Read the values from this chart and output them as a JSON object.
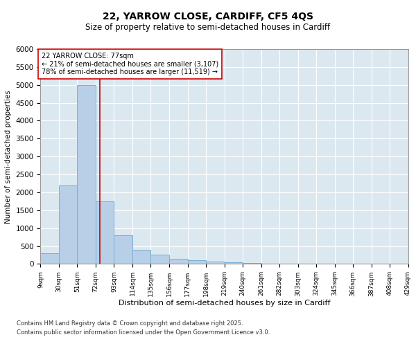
{
  "title": "22, YARROW CLOSE, CARDIFF, CF5 4QS",
  "subtitle": "Size of property relative to semi-detached houses in Cardiff",
  "xlabel": "Distribution of semi-detached houses by size in Cardiff",
  "ylabel": "Number of semi-detached properties",
  "footnote1": "Contains HM Land Registry data © Crown copyright and database right 2025.",
  "footnote2": "Contains public sector information licensed under the Open Government Licence v3.0.",
  "annotation_title": "22 YARROW CLOSE: 77sqm",
  "annotation_line1": "← 21% of semi-detached houses are smaller (3,107)",
  "annotation_line2": "78% of semi-detached houses are larger (11,519) →",
  "property_size": 77,
  "bar_color": "#b8cfe8",
  "bar_edge_color": "#7aadd4",
  "vline_color": "#cc0000",
  "annotation_box_edge": "#cc0000",
  "background_color": "#dce8f0",
  "ylim": [
    0,
    6000
  ],
  "yticks": [
    0,
    500,
    1000,
    1500,
    2000,
    2500,
    3000,
    3500,
    4000,
    4500,
    5000,
    5500,
    6000
  ],
  "bins": [
    9,
    30,
    51,
    72,
    93,
    114,
    135,
    156,
    177,
    198,
    219,
    240,
    261,
    282,
    303,
    324,
    345,
    366,
    387,
    408,
    429
  ],
  "counts": [
    300,
    2200,
    5000,
    1750,
    800,
    400,
    250,
    150,
    100,
    75,
    50,
    30,
    0,
    0,
    0,
    0,
    0,
    0,
    0,
    0
  ]
}
